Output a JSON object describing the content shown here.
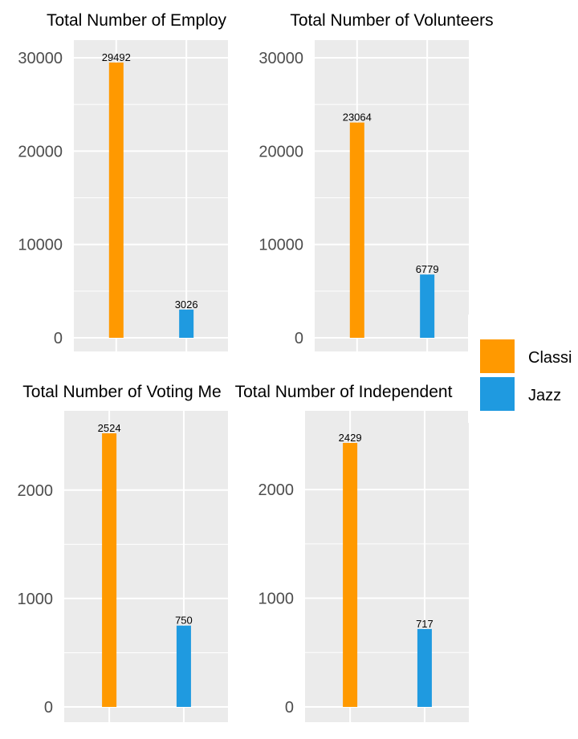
{
  "chart_data": [
    {
      "type": "bar",
      "title": "Total Number of Employ",
      "categories": [
        "Classi",
        "Jazz"
      ],
      "values": [
        29492,
        3026
      ],
      "ylim": [
        0,
        30000
      ],
      "yticks": [
        0,
        10000,
        20000,
        30000
      ],
      "grid": true
    },
    {
      "type": "bar",
      "title": "Total Number of Volunteers",
      "categories": [
        "Classi",
        "Jazz"
      ],
      "values": [
        23064,
        6779
      ],
      "ylim": [
        0,
        30000
      ],
      "yticks": [
        0,
        10000,
        20000,
        30000
      ],
      "grid": true
    },
    {
      "type": "bar",
      "title": "Total Number of Voting Me",
      "categories": [
        "Classi",
        "Jazz"
      ],
      "values": [
        2524,
        750
      ],
      "ylim": [
        0,
        2524
      ],
      "yticks": [
        0,
        1000,
        2000
      ],
      "grid": true
    },
    {
      "type": "bar",
      "title": "Total Number of Independent",
      "categories": [
        "Classi",
        "Jazz"
      ],
      "values": [
        2429,
        717
      ],
      "ylim": [
        0,
        2429
      ],
      "yticks": [
        0,
        1000,
        2000
      ],
      "grid": true
    }
  ],
  "legend": {
    "placement": "right",
    "items": [
      {
        "label": "Classi",
        "color": "#FF9900"
      },
      {
        "label": "Jazz",
        "color": "#1F9AE0"
      }
    ]
  },
  "colors": {
    "panel_background": "#EBEBEB",
    "grid": "#FFFFFF",
    "tick_text": "#4D4D4D"
  }
}
